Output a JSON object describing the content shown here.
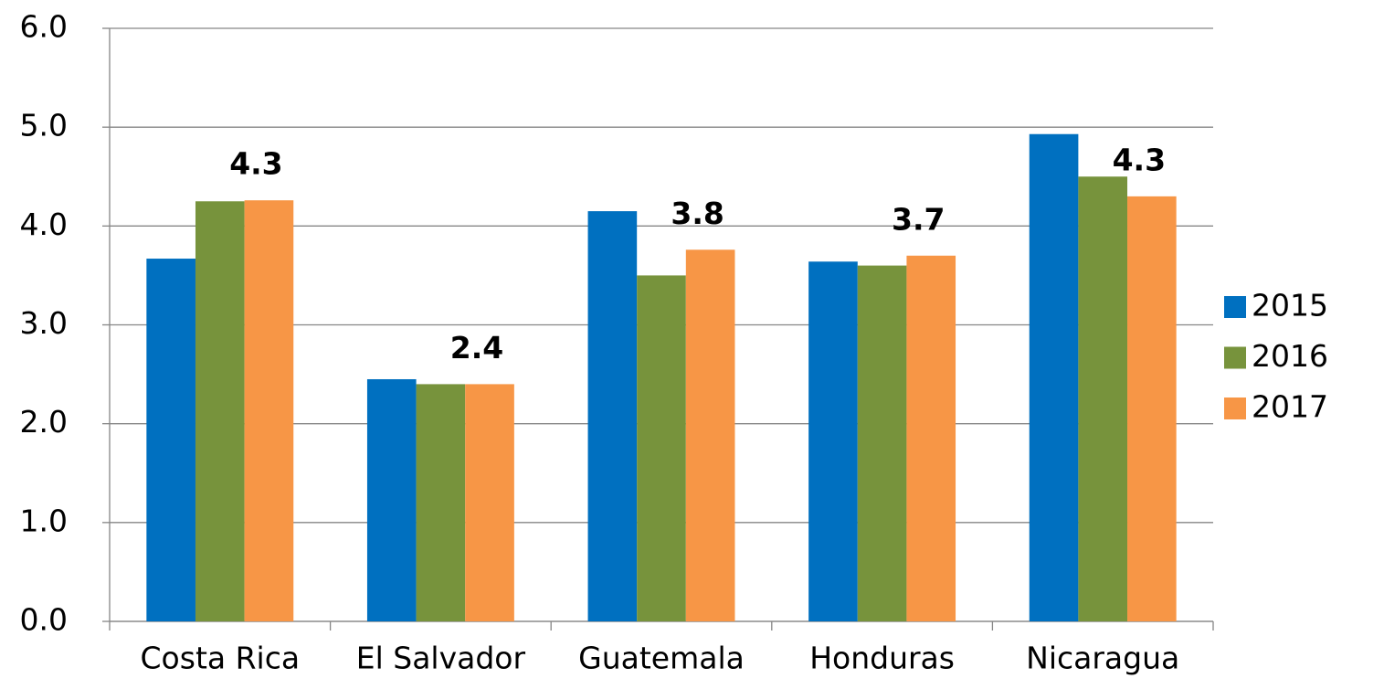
{
  "chart_data": {
    "type": "bar",
    "categories": [
      "Costa Rica",
      "El Salvador",
      "Guatemala",
      "Honduras",
      "Nicaragua"
    ],
    "series": [
      {
        "name": "2015",
        "color": "#0070c0",
        "values": [
          3.67,
          2.45,
          4.15,
          3.64,
          4.93
        ]
      },
      {
        "name": "2016",
        "color": "#77933c",
        "values": [
          4.25,
          2.4,
          3.5,
          3.6,
          4.5
        ]
      },
      {
        "name": "2017",
        "color": "#f79646",
        "values": [
          4.26,
          2.4,
          3.76,
          3.7,
          4.3
        ],
        "value_labels": [
          "4.3",
          "2.4",
          "3.8",
          "3.7",
          "4.3"
        ]
      }
    ],
    "ylim": [
      0,
      6
    ],
    "yticks": [
      {
        "value": 0,
        "label": "0.0"
      },
      {
        "value": 1,
        "label": "1.0"
      },
      {
        "value": 2,
        "label": "2.0"
      },
      {
        "value": 3,
        "label": "3.0"
      },
      {
        "value": 4,
        "label": "4.0"
      },
      {
        "value": 5,
        "label": "5.0"
      },
      {
        "value": 6,
        "label": "6.0"
      }
    ],
    "grid": true,
    "legend": "right"
  }
}
